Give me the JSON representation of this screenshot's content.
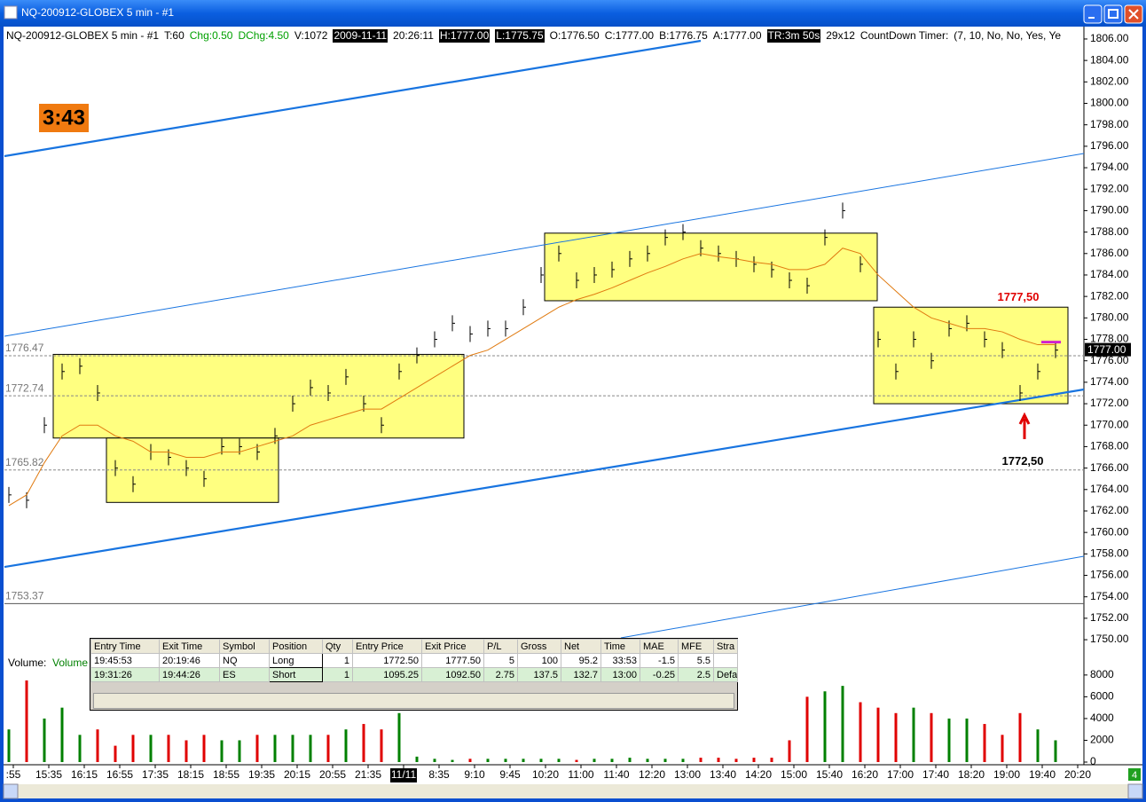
{
  "window": {
    "title": "NQ-200912-GLOBEX  5 min  - #1"
  },
  "info_bar": [
    {
      "text": "NQ-200912-GLOBEX  5 min  - #1"
    },
    {
      "text": "T:60"
    },
    {
      "text": "Chg:0.50",
      "color": "#00a000"
    },
    {
      "text": "DChg:4.50",
      "color": "#00a000"
    },
    {
      "text": "V:1072"
    },
    {
      "text": "2009-11-11",
      "inverse": true
    },
    {
      "text": "20:26:11"
    },
    {
      "text": "H:1777.00",
      "inverse": true
    },
    {
      "text": "L:1775.75",
      "inverse": true
    },
    {
      "text": "O:1776.50"
    },
    {
      "text": "C:1777.00"
    },
    {
      "text": "B:1776.75"
    },
    {
      "text": "A:1777.00"
    },
    {
      "text": "TR:3m 50s",
      "inverse": true
    },
    {
      "text": "29x12"
    },
    {
      "text": "CountDown Timer:"
    },
    {
      "text": "(7, 10, No, No, Yes, Ye"
    }
  ],
  "countdown": "3:43",
  "chart_data": {
    "type": "bar",
    "ylim": [
      1748.6,
      1806.74
    ],
    "yticks": [
      {
        "value": 1750,
        "label": "1750.00"
      },
      {
        "value": 1752,
        "label": "1752.00"
      },
      {
        "value": 1754,
        "label": "1754.00"
      },
      {
        "value": 1756,
        "label": "1756.00"
      },
      {
        "value": 1758,
        "label": "1758.00"
      },
      {
        "value": 1760,
        "label": "1760.00"
      },
      {
        "value": 1762,
        "label": "1762.00"
      },
      {
        "value": 1764,
        "label": "1764.00"
      },
      {
        "value": 1766,
        "label": "1766.00"
      },
      {
        "value": 1768,
        "label": "1768.00"
      },
      {
        "value": 1770,
        "label": "1770.00"
      },
      {
        "value": 1772,
        "label": "1772.00"
      },
      {
        "value": 1774,
        "label": "1774.00"
      },
      {
        "value": 1776,
        "label": "1776.00"
      },
      {
        "value": 1778,
        "label": "1778.00"
      },
      {
        "value": 1780,
        "label": "1780.00"
      },
      {
        "value": 1782,
        "label": "1782.00"
      },
      {
        "value": 1784,
        "label": "1784.00"
      },
      {
        "value": 1786,
        "label": "1786.00"
      },
      {
        "value": 1788,
        "label": "1788.00"
      },
      {
        "value": 1790,
        "label": "1790.00"
      },
      {
        "value": 1792,
        "label": "1792.00"
      },
      {
        "value": 1794,
        "label": "1794.00"
      },
      {
        "value": 1796,
        "label": "1796.00"
      },
      {
        "value": 1798,
        "label": "1798.00"
      },
      {
        "value": 1800,
        "label": "1800.00"
      },
      {
        "value": 1802,
        "label": "1802.00"
      },
      {
        "value": 1804,
        "label": "1804.00"
      },
      {
        "value": 1806,
        "label": "1806.00"
      }
    ],
    "series": [
      {
        "name": "Close",
        "color": "#000000",
        "values": [
          1763.5,
          1763,
          1770,
          1775,
          1775.5,
          1773,
          1766,
          1764.5,
          1767.5,
          1767,
          1766,
          1765,
          1768,
          1768,
          1767.5,
          1769,
          1772,
          1773.5,
          1773,
          1774.5,
          1772,
          1770,
          1775,
          1776.5,
          1778,
          1779.5,
          1778.5,
          1779,
          1779,
          1781,
          1784,
          1786,
          1783.5,
          1784,
          1784.5,
          1785.5,
          1786,
          1787.5,
          1788,
          1786.5,
          1786,
          1785.5,
          1785,
          1784.5,
          1783.5,
          1783,
          1787.5,
          1790,
          1785,
          1778,
          1775,
          1778,
          1776,
          1779,
          1779.5,
          1778,
          1777,
          1773,
          1775,
          1777
        ]
      },
      {
        "name": "MA",
        "color": "#e07a10",
        "values": [
          1762.5,
          1763.5,
          1766.5,
          1769,
          1770,
          1770,
          1769,
          1768.5,
          1767.5,
          1767.5,
          1767,
          1767,
          1767.5,
          1767.5,
          1768,
          1768.5,
          1769,
          1770,
          1770.5,
          1771,
          1771.5,
          1771.5,
          1772.5,
          1773.5,
          1774.5,
          1775.5,
          1776.5,
          1777,
          1778,
          1779,
          1780,
          1781,
          1781.7,
          1782.2,
          1782.8,
          1783.5,
          1784.2,
          1784.8,
          1785.5,
          1786,
          1785.7,
          1785.5,
          1785.2,
          1785,
          1784.5,
          1784.5,
          1785,
          1786.5,
          1786,
          1784,
          1782.5,
          1781,
          1780,
          1779.5,
          1779,
          1779,
          1778.7,
          1778,
          1777.5,
          1777.5
        ]
      }
    ],
    "levels": [
      {
        "value": 1776.47,
        "label": "1776.47"
      },
      {
        "value": 1772.74,
        "label": "1772.74"
      },
      {
        "value": 1765.82,
        "label": "1765.82"
      },
      {
        "value": 1753.37,
        "label": "1753.37"
      }
    ],
    "last_price": {
      "value": 1777,
      "label": "1777.00"
    },
    "boxes": [
      {
        "from": 2.5,
        "to": 25.65,
        "low": 1768.8,
        "high": 1776.6
      },
      {
        "from": 5.5,
        "to": 15.2,
        "low": 1762.8,
        "high": 1768.8
      },
      {
        "from": 30.2,
        "to": 48.95,
        "low": 1781.6,
        "high": 1787.9
      },
      {
        "from": 48.75,
        "to": 59.7,
        "low": 1772,
        "high": 1781
      }
    ],
    "trend_lines": [
      {
        "from": [
          -0.25,
          1795.08
        ],
        "to": [
          39,
          1805.83
        ],
        "width": 2.2
      },
      {
        "from": [
          -0.25,
          1756.78
        ],
        "to": [
          60.6,
          1773.33
        ],
        "width": 2.2
      },
      {
        "from": [
          -0.25,
          1778.29
        ],
        "to": [
          60.6,
          1795.33
        ],
        "width": 1
      },
      {
        "from": [
          34.5,
          1750.17
        ],
        "to": [
          60.6,
          1757.78
        ],
        "width": 1
      }
    ],
    "trend_color": "#1874e0",
    "annotations": [
      {
        "text": "1777,50",
        "color": "#e00000",
        "at": [
          56.9,
          1781.9
        ]
      },
      {
        "text": "1772,50",
        "color": "#000000",
        "at": [
          57.15,
          1766.6
        ]
      }
    ],
    "time_labels": [
      ":55",
      "15:35",
      "16:15",
      "16:55",
      "17:35",
      "18:15",
      "18:55",
      "19:35",
      "20:15",
      "20:55",
      "21:35",
      {
        "text": "11/11",
        "inverse": true
      },
      "8:35",
      "9:10",
      "9:45",
      "10:20",
      "11:00",
      "11:40",
      "12:20",
      "13:00",
      "13:40",
      "14:20",
      "15:00",
      "15:40",
      "16:20",
      "17:00",
      "17:40",
      "18:20",
      "19:00",
      "19:40",
      "20:20"
    ],
    "volume": {
      "label": "Volume:",
      "name": "Volume",
      "ylim": [
        0,
        9700
      ],
      "yticks": [
        0,
        2000,
        4000,
        6000,
        8000
      ],
      "up_color": "#008000",
      "down_color": "#e00000",
      "values": [
        3000,
        7500,
        4000,
        5000,
        2500,
        3000,
        1500,
        2500,
        2500,
        2500,
        2000,
        2500,
        2000,
        2000,
        2500,
        2500,
        2500,
        2500,
        2500,
        3000,
        3500,
        3000,
        4500,
        500,
        300,
        200,
        300,
        300,
        300,
        300,
        300,
        300,
        200,
        300,
        300,
        400,
        300,
        300,
        300,
        400,
        400,
        300,
        400,
        400,
        2000,
        6000,
        6500,
        7000,
        5500,
        5000,
        4500,
        5000,
        4500,
        4000,
        4000,
        3500,
        2500,
        4500,
        3000,
        2000
      ]
    }
  },
  "trade_table": {
    "columns": [
      "Entry Time",
      "Exit Time",
      "Symbol",
      "Position",
      "Qty",
      "Entry Price",
      "Exit Price",
      "P/L",
      "Gross",
      "Net",
      "Time",
      "MAE",
      "MFE",
      "Stra"
    ],
    "rows": [
      [
        "19:45:53",
        "20:19:46",
        "NQ",
        "Long",
        "1",
        "1772.50",
        "1777.50",
        "5",
        "100",
        "95.2",
        "33:53",
        "-1.5",
        "5.5"
      ],
      [
        "19:31:26",
        "19:44:26",
        "ES",
        "Short",
        "1",
        "1095.25",
        "1092.50",
        "2.75",
        "137.5",
        "132.7",
        "13:00",
        "-0.25",
        "2.5",
        "Defa"
      ]
    ]
  },
  "page_badge": "4"
}
